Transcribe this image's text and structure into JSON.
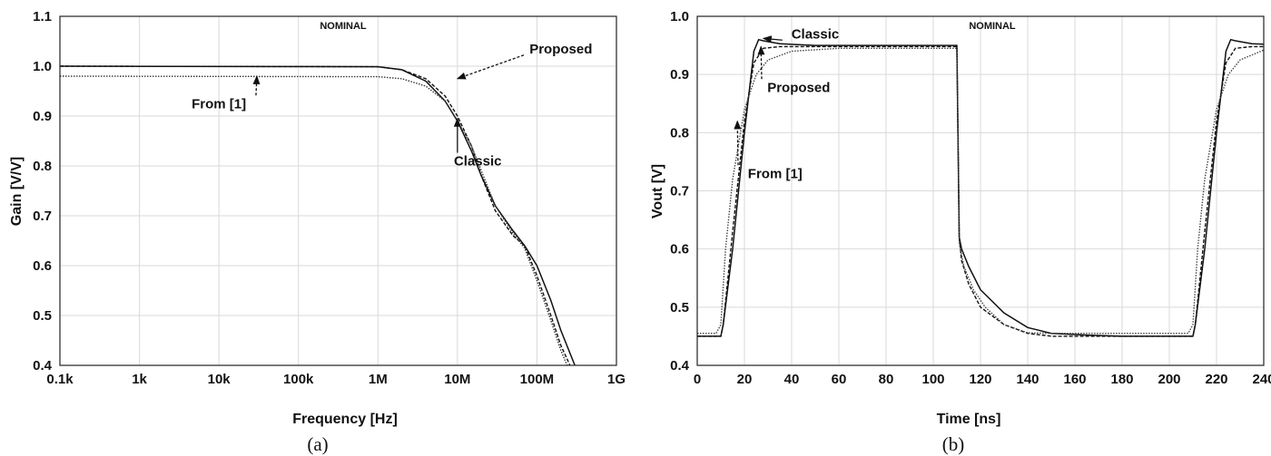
{
  "chart_data": [
    {
      "type": "line",
      "panel_label": "(a)",
      "annotation_title": "NOMINAL",
      "xlabel": "Frequency [Hz]",
      "ylabel": "Gain [V/V]",
      "xscale": "log",
      "xlim": [
        100,
        1000000000
      ],
      "ylim": [
        0.4,
        1.1
      ],
      "grid": true,
      "x_ticks": [
        {
          "value": 100,
          "label": "0.1k"
        },
        {
          "value": 1000,
          "label": "1k"
        },
        {
          "value": 10000,
          "label": "10k"
        },
        {
          "value": 100000,
          "label": "100k"
        },
        {
          "value": 1000000,
          "label": "1M"
        },
        {
          "value": 10000000,
          "label": "10M"
        },
        {
          "value": 100000000,
          "label": "100M"
        },
        {
          "value": 1000000000,
          "label": "1G"
        }
      ],
      "y_ticks": [
        {
          "value": 0.4,
          "label": "0.4"
        },
        {
          "value": 0.5,
          "label": "0.5"
        },
        {
          "value": 0.6,
          "label": "0.6"
        },
        {
          "value": 0.7,
          "label": "0.7"
        },
        {
          "value": 0.8,
          "label": "0.8"
        },
        {
          "value": 0.9,
          "label": "0.9"
        },
        {
          "value": 1.0,
          "label": "1.0"
        },
        {
          "value": 1.1,
          "label": "1.1"
        }
      ],
      "series": [
        {
          "name": "Classic",
          "style": "solid",
          "color": "#111111",
          "x": [
            100,
            1000000,
            2000000,
            4000000,
            7000000,
            10000000,
            15000000,
            20000000,
            30000000,
            50000000,
            70000000,
            100000000,
            150000000,
            200000000,
            300000000
          ],
          "y": [
            1.0,
            0.999,
            0.993,
            0.97,
            0.93,
            0.89,
            0.83,
            0.78,
            0.72,
            0.67,
            0.64,
            0.6,
            0.53,
            0.47,
            0.4
          ]
        },
        {
          "name": "Proposed",
          "style": "dashed",
          "color": "#111111",
          "x": [
            100,
            1000000,
            2000000,
            4000000,
            7000000,
            10000000,
            15000000,
            20000000,
            30000000,
            50000000,
            70000000,
            100000000,
            150000000,
            200000000,
            260000000
          ],
          "y": [
            1.0,
            0.999,
            0.993,
            0.975,
            0.94,
            0.9,
            0.84,
            0.78,
            0.71,
            0.66,
            0.64,
            0.58,
            0.5,
            0.44,
            0.4
          ]
        },
        {
          "name": "From [1]",
          "style": "dotted",
          "color": "#333333",
          "x": [
            100,
            1000000,
            2000000,
            4000000,
            7000000,
            10000000,
            15000000,
            20000000,
            30000000,
            50000000,
            70000000,
            100000000,
            150000000,
            200000000,
            240000000
          ],
          "y": [
            0.98,
            0.979,
            0.975,
            0.96,
            0.93,
            0.89,
            0.84,
            0.79,
            0.72,
            0.665,
            0.635,
            0.57,
            0.49,
            0.43,
            0.4
          ]
        }
      ],
      "annotations": [
        {
          "text": "Proposed",
          "series": "Proposed",
          "point": [
            10000000,
            0.975
          ],
          "label_at": [
            200000000,
            1.035
          ]
        },
        {
          "text": "Classic",
          "series": "Classic",
          "point": [
            10000000,
            0.895
          ],
          "label_at": [
            18000000,
            0.81
          ]
        },
        {
          "text": "From [1]",
          "series": "From [1]",
          "point": [
            30000,
            0.98
          ],
          "label_at": [
            10000,
            0.925
          ]
        }
      ]
    },
    {
      "type": "line",
      "panel_label": "(b)",
      "annotation_title": "NOMINAL",
      "xlabel": "Time  [ns]",
      "ylabel": "Vout [V]",
      "xlim": [
        0,
        240
      ],
      "ylim": [
        0.4,
        1.0
      ],
      "grid": true,
      "x_ticks": [
        {
          "value": 0,
          "label": "0"
        },
        {
          "value": 20,
          "label": "20"
        },
        {
          "value": 40,
          "label": "40"
        },
        {
          "value": 60,
          "label": "60"
        },
        {
          "value": 80,
          "label": "80"
        },
        {
          "value": 100,
          "label": "100"
        },
        {
          "value": 120,
          "label": "120"
        },
        {
          "value": 140,
          "label": "140"
        },
        {
          "value": 160,
          "label": "160"
        },
        {
          "value": 180,
          "label": "180"
        },
        {
          "value": 200,
          "label": "200"
        },
        {
          "value": 220,
          "label": "220"
        },
        {
          "value": 240,
          "label": "240"
        }
      ],
      "y_ticks": [
        {
          "value": 0.4,
          "label": "0.4"
        },
        {
          "value": 0.5,
          "label": "0.5"
        },
        {
          "value": 0.6,
          "label": "0.6"
        },
        {
          "value": 0.7,
          "label": "0.7"
        },
        {
          "value": 0.8,
          "label": "0.8"
        },
        {
          "value": 0.9,
          "label": "0.9"
        },
        {
          "value": 1.0,
          "label": "1.0"
        }
      ],
      "series": [
        {
          "name": "Classic",
          "style": "solid",
          "color": "#111111",
          "x": [
            0,
            10,
            11,
            15,
            20,
            24,
            26,
            28,
            35,
            50,
            110,
            111,
            112,
            115,
            120,
            130,
            140,
            150,
            165,
            180,
            210,
            211,
            215,
            220,
            224,
            226,
            228,
            235,
            240
          ],
          "y": [
            0.45,
            0.45,
            0.47,
            0.6,
            0.8,
            0.94,
            0.96,
            0.958,
            0.953,
            0.95,
            0.95,
            0.62,
            0.6,
            0.57,
            0.53,
            0.49,
            0.465,
            0.455,
            0.452,
            0.45,
            0.45,
            0.47,
            0.6,
            0.8,
            0.94,
            0.96,
            0.958,
            0.953,
            0.952
          ]
        },
        {
          "name": "Proposed",
          "style": "dashed",
          "color": "#111111",
          "x": [
            0,
            10,
            11,
            15,
            20,
            24,
            28,
            35,
            50,
            110,
            111,
            112,
            115,
            120,
            130,
            140,
            150,
            165,
            180,
            210,
            211,
            215,
            220,
            224,
            228,
            235,
            240
          ],
          "y": [
            0.45,
            0.45,
            0.47,
            0.63,
            0.82,
            0.92,
            0.945,
            0.948,
            0.948,
            0.948,
            0.62,
            0.58,
            0.54,
            0.5,
            0.47,
            0.455,
            0.45,
            0.45,
            0.45,
            0.45,
            0.47,
            0.63,
            0.82,
            0.92,
            0.945,
            0.948,
            0.948
          ]
        },
        {
          "name": "From [1]",
          "style": "dotted",
          "color": "#444444",
          "x": [
            0,
            8,
            10,
            12,
            15,
            20,
            25,
            30,
            40,
            60,
            110,
            111,
            113,
            117,
            122,
            130,
            140,
            150,
            165,
            180,
            208,
            210,
            212,
            215,
            220,
            225,
            230,
            240
          ],
          "y": [
            0.455,
            0.455,
            0.47,
            0.6,
            0.72,
            0.84,
            0.9,
            0.925,
            0.94,
            0.945,
            0.945,
            0.61,
            0.57,
            0.53,
            0.5,
            0.47,
            0.456,
            0.455,
            0.455,
            0.455,
            0.455,
            0.47,
            0.6,
            0.72,
            0.84,
            0.9,
            0.925,
            0.942
          ]
        }
      ],
      "annotations": [
        {
          "text": "Classic",
          "series": "Classic",
          "point": [
            28,
            0.962
          ],
          "label_at": [
            50,
            0.97
          ]
        },
        {
          "text": "Proposed",
          "series": "Proposed",
          "point": [
            27,
            0.948
          ],
          "label_at": [
            43,
            0.878
          ]
        },
        {
          "text": "From [1]",
          "series": "From [1]",
          "point": [
            17,
            0.82
          ],
          "label_at": [
            33,
            0.73
          ]
        }
      ]
    }
  ]
}
